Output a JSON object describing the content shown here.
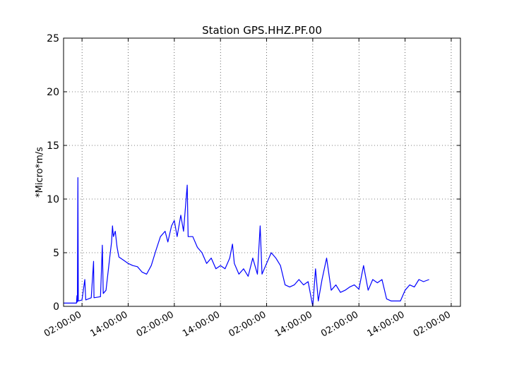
{
  "chart_data": {
    "type": "line",
    "title": "Station GPS.HHZ.PF.00",
    "xlabel": "",
    "ylabel": "*Micro*m/s",
    "ylim": [
      0,
      25
    ],
    "y_ticks": [
      0,
      5,
      10,
      15,
      20,
      25
    ],
    "x_range_hours": [
      -2,
      41
    ],
    "x_ticks": [
      {
        "hour": 0,
        "label": "02:00:00"
      },
      {
        "hour": 5,
        "label": "14:00:00"
      },
      {
        "hour": 10,
        "label": "02:00:00"
      },
      {
        "hour": 15,
        "label": "14:00:00"
      },
      {
        "hour": 20,
        "label": "02:00:00"
      },
      {
        "hour": 25,
        "label": "14:00:00"
      },
      {
        "hour": 30,
        "label": "02:00:00"
      },
      {
        "hour": 35,
        "label": "14:00:00"
      },
      {
        "hour": 40,
        "label": "02:00:00"
      }
    ],
    "grid": true,
    "series": [
      {
        "color": "#0000ff",
        "points": [
          [
            -2.0,
            0.3
          ],
          [
            -0.6,
            0.3
          ],
          [
            -0.55,
            1.0
          ],
          [
            -0.5,
            0.4
          ],
          [
            -0.45,
            12.0
          ],
          [
            -0.4,
            0.5
          ],
          [
            0.0,
            0.6
          ],
          [
            0.3,
            2.5
          ],
          [
            0.4,
            0.6
          ],
          [
            1.0,
            0.8
          ],
          [
            1.25,
            4.2
          ],
          [
            1.3,
            0.8
          ],
          [
            2.0,
            0.9
          ],
          [
            2.2,
            5.7
          ],
          [
            2.3,
            1.2
          ],
          [
            2.6,
            1.5
          ],
          [
            3.0,
            4.5
          ],
          [
            3.2,
            6.0
          ],
          [
            3.3,
            7.5
          ],
          [
            3.4,
            6.5
          ],
          [
            3.6,
            7.0
          ],
          [
            3.8,
            5.5
          ],
          [
            4.0,
            4.6
          ],
          [
            4.5,
            4.3
          ],
          [
            5.0,
            4.0
          ],
          [
            5.5,
            3.8
          ],
          [
            6.0,
            3.7
          ],
          [
            6.5,
            3.2
          ],
          [
            7.0,
            3.0
          ],
          [
            7.5,
            3.8
          ],
          [
            8.0,
            5.2
          ],
          [
            8.5,
            6.5
          ],
          [
            9.0,
            7.0
          ],
          [
            9.3,
            6.0
          ],
          [
            9.7,
            7.5
          ],
          [
            10.0,
            8.0
          ],
          [
            10.3,
            6.5
          ],
          [
            10.7,
            8.5
          ],
          [
            11.0,
            7.0
          ],
          [
            11.4,
            11.3
          ],
          [
            11.5,
            6.5
          ],
          [
            12.0,
            6.5
          ],
          [
            12.5,
            5.5
          ],
          [
            13.0,
            5.0
          ],
          [
            13.5,
            4.0
          ],
          [
            14.0,
            4.5
          ],
          [
            14.5,
            3.5
          ],
          [
            15.0,
            3.8
          ],
          [
            15.5,
            3.5
          ],
          [
            16.0,
            4.5
          ],
          [
            16.3,
            5.8
          ],
          [
            16.5,
            4.0
          ],
          [
            17.0,
            3.0
          ],
          [
            17.5,
            3.5
          ],
          [
            18.0,
            2.8
          ],
          [
            18.5,
            4.5
          ],
          [
            19.0,
            3.0
          ],
          [
            19.3,
            7.5
          ],
          [
            19.5,
            3.0
          ],
          [
            20.0,
            4.0
          ],
          [
            20.5,
            5.0
          ],
          [
            21.0,
            4.5
          ],
          [
            21.5,
            3.8
          ],
          [
            22.0,
            2.0
          ],
          [
            22.5,
            1.8
          ],
          [
            23.0,
            2.0
          ],
          [
            23.5,
            2.5
          ],
          [
            24.0,
            2.0
          ],
          [
            24.5,
            2.3
          ],
          [
            25.0,
            0.0
          ],
          [
            25.3,
            3.5
          ],
          [
            25.6,
            0.5
          ],
          [
            26.0,
            2.5
          ],
          [
            26.5,
            4.5
          ],
          [
            27.0,
            1.5
          ],
          [
            27.5,
            2.0
          ],
          [
            28.0,
            1.3
          ],
          [
            28.5,
            1.5
          ],
          [
            29.0,
            1.8
          ],
          [
            29.5,
            2.0
          ],
          [
            30.0,
            1.6
          ],
          [
            30.5,
            3.8
          ],
          [
            31.0,
            1.5
          ],
          [
            31.5,
            2.5
          ],
          [
            32.0,
            2.2
          ],
          [
            32.5,
            2.5
          ],
          [
            33.0,
            0.7
          ],
          [
            33.5,
            0.5
          ],
          [
            34.0,
            0.5
          ],
          [
            34.5,
            0.5
          ],
          [
            35.0,
            1.5
          ],
          [
            35.5,
            2.0
          ],
          [
            36.0,
            1.8
          ],
          [
            36.5,
            2.5
          ],
          [
            37.0,
            2.3
          ],
          [
            37.6,
            2.5
          ]
        ]
      }
    ]
  }
}
